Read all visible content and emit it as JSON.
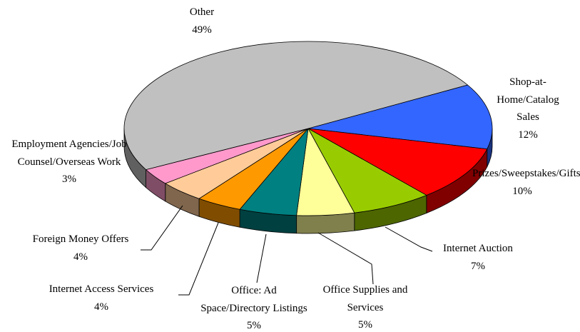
{
  "chart_data": {
    "type": "pie3d",
    "categories": [
      "Shop-at-Home/Catalog Sales",
      "Prizes/Sweepstakes/Gifts",
      "Internet Auction",
      "Office Supplies and Services",
      "Office: Ad Space/Directory Listings",
      "Internet Access Services",
      "Foreign Money Offers",
      "Employment Agencies/Job Counsel/Overseas Work",
      "Other"
    ],
    "values": [
      12,
      10,
      7,
      5,
      5,
      4,
      4,
      3,
      49
    ],
    "value_labels": [
      "12%",
      "10%",
      "7%",
      "5%",
      "5%",
      "4%",
      "4%",
      "3%",
      "49%"
    ],
    "colors": [
      "#3366ff",
      "#ff0000",
      "#99cc00",
      "#ffff99",
      "#008080",
      "#ff9900",
      "#ffcc99",
      "#ff99cc",
      "#c0c0c0"
    ]
  }
}
